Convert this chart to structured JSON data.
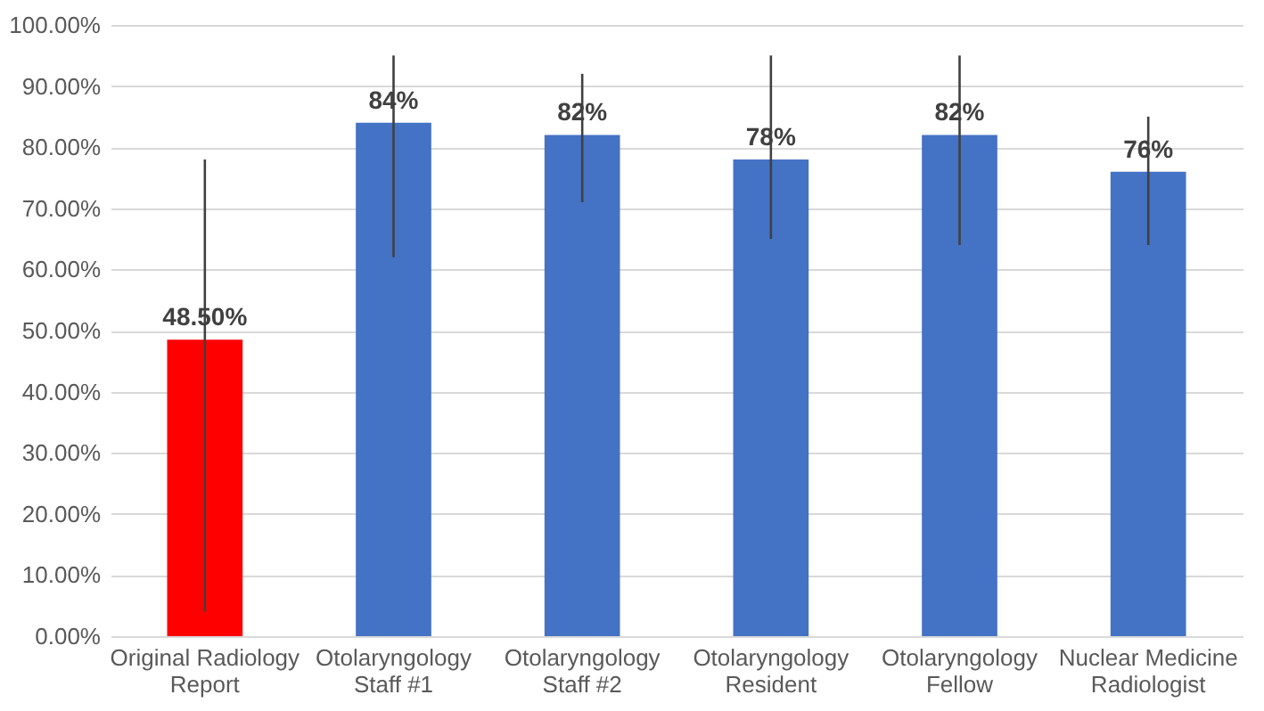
{
  "chart_data": {
    "type": "bar",
    "categories": [
      "Original Radiology Report",
      "Otolaryngology Staff #1",
      "Otolaryngology Staff #2",
      "Otolaryngology Resident",
      "Otolaryngology Fellow",
      "Nuclear Medicine Radiologist"
    ],
    "values": [
      48.5,
      84,
      82,
      78,
      82,
      76
    ],
    "colors": [
      "#ff0000",
      "#4472c4",
      "#4472c4",
      "#4472c4",
      "#4472c4",
      "#4472c4"
    ],
    "errors": [
      [
        4,
        78
      ],
      [
        62,
        95
      ],
      [
        71,
        92
      ],
      [
        65,
        95
      ],
      [
        64,
        95
      ],
      [
        64,
        85
      ]
    ],
    "value_labels": [
      "48.50%",
      "84%",
      "82%",
      "78%",
      "82%",
      "76%"
    ],
    "ylim": [
      0,
      100
    ],
    "yticks": [
      {
        "value": 0,
        "label": "0.00%"
      },
      {
        "value": 10,
        "label": "10.00%"
      },
      {
        "value": 20,
        "label": "20.00%"
      },
      {
        "value": 30,
        "label": "30.00%"
      },
      {
        "value": 40,
        "label": "40.00%"
      },
      {
        "value": 50,
        "label": "50.00%"
      },
      {
        "value": 60,
        "label": "60.00%"
      },
      {
        "value": 70,
        "label": "70.00%"
      },
      {
        "value": 80,
        "label": "80.00%"
      },
      {
        "value": 90,
        "label": "90.00%"
      },
      {
        "value": 100,
        "label": "100.00%"
      }
    ],
    "grid": "y"
  }
}
